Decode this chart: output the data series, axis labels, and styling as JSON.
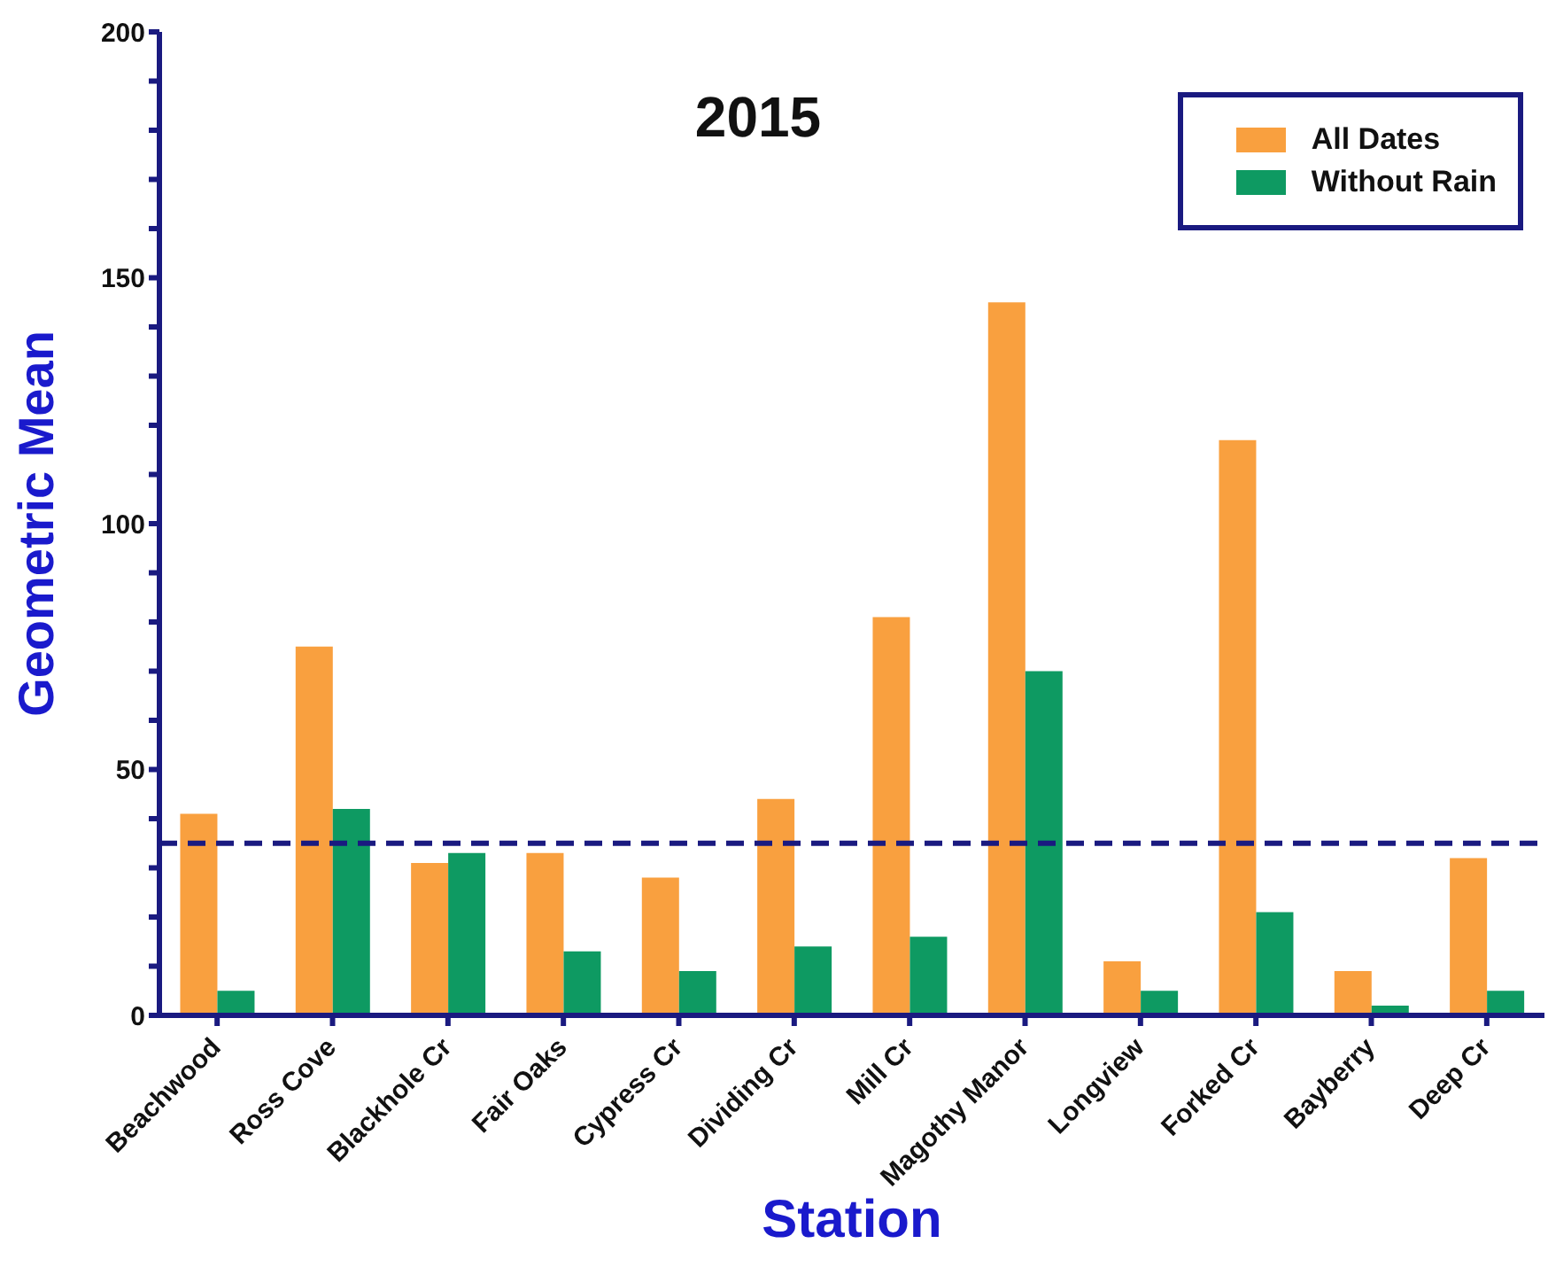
{
  "chart_data": {
    "type": "bar",
    "title": "2015",
    "xlabel": "Station",
    "ylabel": "Geometric Mean",
    "categories": [
      "Beachwood",
      "Ross Cove",
      "Blackhole Cr",
      "Fair Oaks",
      "Cypress Cr",
      "Dividing Cr",
      "Mill Cr",
      "Magothy Manor",
      "Longview",
      "Forked Cr",
      "Bayberry",
      "Deep Cr"
    ],
    "series": [
      {
        "name": "All Dates",
        "color": "#f9a03f",
        "values": [
          41,
          75,
          31,
          33,
          28,
          44,
          81,
          145,
          11,
          117,
          9,
          32
        ]
      },
      {
        "name": "Without Rain",
        "color": "#0e9a62",
        "values": [
          5,
          42,
          33,
          13,
          9,
          14,
          16,
          70,
          5,
          21,
          2,
          5
        ]
      }
    ],
    "ylim": [
      0,
      200
    ],
    "yticks": [
      0,
      {
        "value": 10,
        "label": null
      },
      {
        "value": 20,
        "label": null
      },
      {
        "value": 30,
        "label": null
      },
      {
        "value": 40,
        "label": null
      },
      50,
      {
        "value": 60,
        "label": null
      },
      {
        "value": 70,
        "label": null
      },
      {
        "value": 80,
        "label": null
      },
      {
        "value": 90,
        "label": null
      },
      100,
      {
        "value": 110,
        "label": null
      },
      {
        "value": 120,
        "label": null
      },
      {
        "value": 130,
        "label": null
      },
      {
        "value": 140,
        "label": null
      },
      150,
      {
        "value": 160,
        "label": null
      },
      {
        "value": 170,
        "label": null
      },
      {
        "value": 180,
        "label": null
      },
      {
        "value": 190,
        "label": null
      },
      200
    ],
    "ref_lines": [
      {
        "axis": "y",
        "value": 35,
        "color": "#1a1a80",
        "line_style": "dashed"
      }
    ],
    "grid": false,
    "legend": "top right"
  }
}
